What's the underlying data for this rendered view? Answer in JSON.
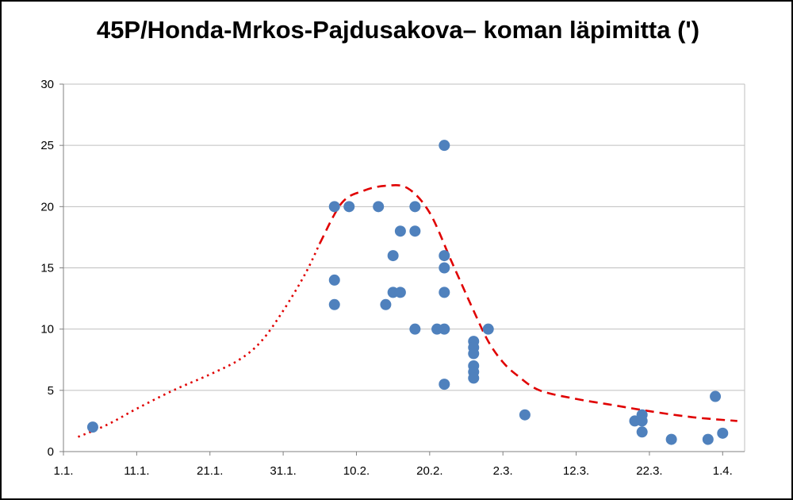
{
  "chart_data": {
    "type": "scatter",
    "title": "45P/Honda-Mrkos-Pajdusakova– koman läpimitta (')",
    "xlabel": "",
    "ylabel": "",
    "x_axis": {
      "type": "date",
      "range": [
        "2017-01-01",
        "2017-04-04"
      ],
      "ticks": [
        {
          "date": "2017-01-01",
          "label": "1.1."
        },
        {
          "date": "2017-01-11",
          "label": "11.1."
        },
        {
          "date": "2017-01-21",
          "label": "21.1."
        },
        {
          "date": "2017-01-31",
          "label": "31.1."
        },
        {
          "date": "2017-02-10",
          "label": "10.2."
        },
        {
          "date": "2017-02-20",
          "label": "20.2."
        },
        {
          "date": "2017-03-02",
          "label": "2.3."
        },
        {
          "date": "2017-03-12",
          "label": "12.3."
        },
        {
          "date": "2017-03-22",
          "label": "22.3."
        },
        {
          "date": "2017-04-01",
          "label": "1.4."
        }
      ]
    },
    "y_axis": {
      "range": [
        0,
        30
      ],
      "ticks": [
        0,
        5,
        10,
        15,
        20,
        25,
        30
      ]
    },
    "grid": {
      "horizontal": true,
      "vertical": false
    },
    "legend": "none",
    "colors": {
      "points": "#4F81BD",
      "fit": "#E00000",
      "grid": "#BFBFBF"
    },
    "series": [
      {
        "kind": "points",
        "points": [
          {
            "x": "2017-01-05",
            "y": 2
          },
          {
            "x": "2017-02-07",
            "y": 20
          },
          {
            "x": "2017-02-07",
            "y": 14
          },
          {
            "x": "2017-02-07",
            "y": 12
          },
          {
            "x": "2017-02-09",
            "y": 20
          },
          {
            "x": "2017-02-13",
            "y": 20
          },
          {
            "x": "2017-02-14",
            "y": 12
          },
          {
            "x": "2017-02-15",
            "y": 16
          },
          {
            "x": "2017-02-15",
            "y": 13
          },
          {
            "x": "2017-02-16",
            "y": 18
          },
          {
            "x": "2017-02-16",
            "y": 13
          },
          {
            "x": "2017-02-18",
            "y": 20
          },
          {
            "x": "2017-02-18",
            "y": 18
          },
          {
            "x": "2017-02-18",
            "y": 10
          },
          {
            "x": "2017-02-21",
            "y": 10
          },
          {
            "x": "2017-02-22",
            "y": 25
          },
          {
            "x": "2017-02-22",
            "y": 16
          },
          {
            "x": "2017-02-22",
            "y": 15
          },
          {
            "x": "2017-02-22",
            "y": 13
          },
          {
            "x": "2017-02-22",
            "y": 10
          },
          {
            "x": "2017-02-22",
            "y": 5.5
          },
          {
            "x": "2017-02-26",
            "y": 9
          },
          {
            "x": "2017-02-26",
            "y": 8.5
          },
          {
            "x": "2017-02-26",
            "y": 8
          },
          {
            "x": "2017-02-26",
            "y": 7
          },
          {
            "x": "2017-02-26",
            "y": 6.5
          },
          {
            "x": "2017-02-26",
            "y": 6
          },
          {
            "x": "2017-02-28",
            "y": 10
          },
          {
            "x": "2017-03-05",
            "y": 3
          },
          {
            "x": "2017-03-20",
            "y": 2.5
          },
          {
            "x": "2017-03-21",
            "y": 3
          },
          {
            "x": "2017-03-21",
            "y": 2.5
          },
          {
            "x": "2017-03-21",
            "y": 1.6
          },
          {
            "x": "2017-03-25",
            "y": 1
          },
          {
            "x": "2017-03-30",
            "y": 1
          },
          {
            "x": "2017-03-31",
            "y": 4.5
          },
          {
            "x": "2017-04-01",
            "y": 1.5
          }
        ]
      },
      {
        "kind": "curve",
        "style": "dotted",
        "points": [
          {
            "x": "2017-01-03",
            "y": 1.2
          },
          {
            "x": "2017-01-07",
            "y": 2.2
          },
          {
            "x": "2017-01-11",
            "y": 3.5
          },
          {
            "x": "2017-01-16",
            "y": 5.0
          },
          {
            "x": "2017-01-21",
            "y": 6.3
          },
          {
            "x": "2017-01-25",
            "y": 7.5
          },
          {
            "x": "2017-01-28",
            "y": 9.0
          },
          {
            "x": "2017-01-31",
            "y": 11.5
          },
          {
            "x": "2017-02-03",
            "y": 14.5
          },
          {
            "x": "2017-02-05",
            "y": 17.0
          }
        ]
      },
      {
        "kind": "curve",
        "style": "dashed",
        "points": [
          {
            "x": "2017-02-05",
            "y": 17.0
          },
          {
            "x": "2017-02-08",
            "y": 20.3
          },
          {
            "x": "2017-02-11",
            "y": 21.3
          },
          {
            "x": "2017-02-14",
            "y": 21.7
          },
          {
            "x": "2017-02-17",
            "y": 21.5
          },
          {
            "x": "2017-02-20",
            "y": 19.5
          },
          {
            "x": "2017-02-23",
            "y": 15.5
          },
          {
            "x": "2017-02-26",
            "y": 11.5
          },
          {
            "x": "2017-02-28",
            "y": 9.0
          },
          {
            "x": "2017-03-02",
            "y": 7.3
          },
          {
            "x": "2017-03-04",
            "y": 6.2
          },
          {
            "x": "2017-03-07",
            "y": 5.0
          },
          {
            "x": "2017-03-12",
            "y": 4.3
          },
          {
            "x": "2017-03-17",
            "y": 3.8
          },
          {
            "x": "2017-03-22",
            "y": 3.3
          },
          {
            "x": "2017-03-28",
            "y": 2.8
          },
          {
            "x": "2017-04-03",
            "y": 2.5
          }
        ]
      }
    ]
  }
}
